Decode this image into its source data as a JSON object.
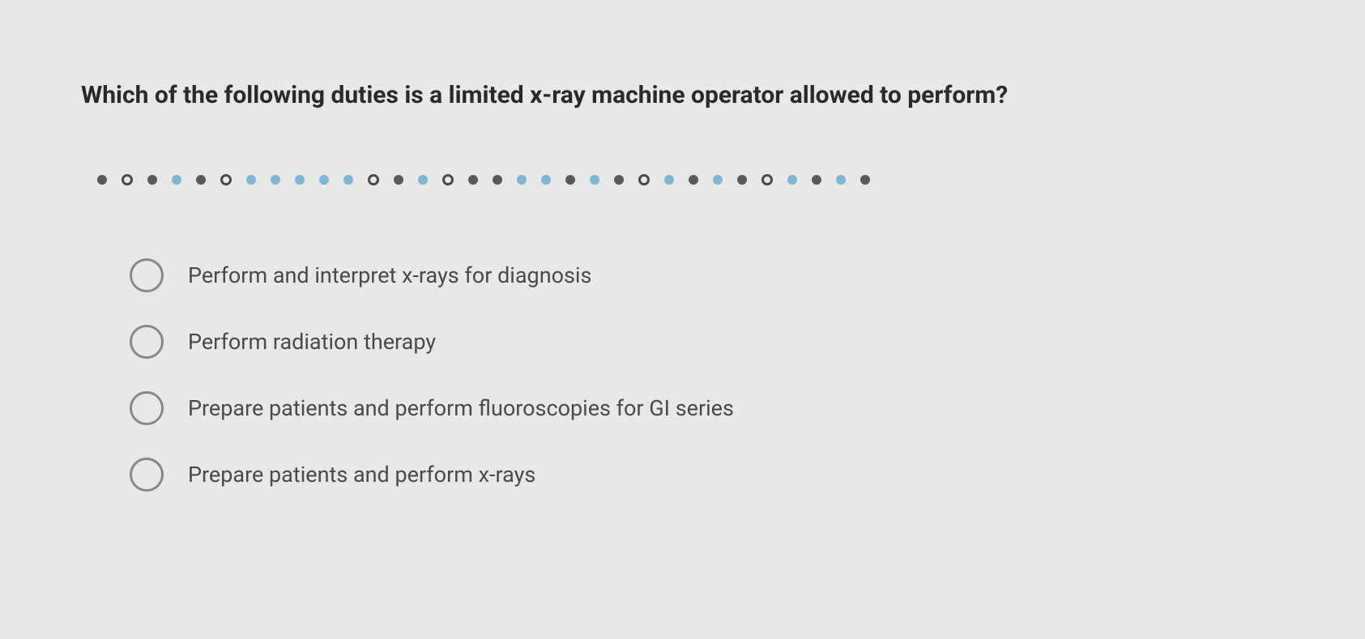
{
  "question": {
    "text": "Which of the following duties is a limited x-ray machine operator allowed to perform?"
  },
  "progress": {
    "dots": [
      {
        "type": "filled-dark"
      },
      {
        "type": "outline-dark"
      },
      {
        "type": "filled-dark"
      },
      {
        "type": "filled-blue"
      },
      {
        "type": "filled-dark"
      },
      {
        "type": "outline-dark"
      },
      {
        "type": "filled-blue"
      },
      {
        "type": "filled-blue"
      },
      {
        "type": "filled-blue"
      },
      {
        "type": "filled-blue"
      },
      {
        "type": "filled-blue"
      },
      {
        "type": "outline-dark"
      },
      {
        "type": "filled-dark"
      },
      {
        "type": "filled-blue"
      },
      {
        "type": "outline-dark"
      },
      {
        "type": "filled-dark"
      },
      {
        "type": "filled-dark"
      },
      {
        "type": "filled-blue"
      },
      {
        "type": "filled-blue"
      },
      {
        "type": "filled-dark"
      },
      {
        "type": "filled-blue"
      },
      {
        "type": "filled-dark"
      },
      {
        "type": "outline-dark"
      },
      {
        "type": "filled-blue"
      },
      {
        "type": "filled-dark"
      },
      {
        "type": "filled-blue"
      },
      {
        "type": "filled-dark"
      },
      {
        "type": "outline-dark"
      },
      {
        "type": "filled-blue"
      },
      {
        "type": "filled-dark"
      },
      {
        "type": "filled-blue"
      },
      {
        "type": "filled-dark"
      }
    ],
    "colors": {
      "filled_dark": "#5a5a5a",
      "outline_dark": "#4a4a4a",
      "filled_blue": "#7cb8d6"
    }
  },
  "options": [
    {
      "label": "Perform and interpret x-rays for diagnosis",
      "selected": false
    },
    {
      "label": "Perform radiation therapy",
      "selected": false
    },
    {
      "label": "Prepare patients and perform fluoroscopies for GI series",
      "selected": false
    },
    {
      "label": "Prepare patients and perform x-rays",
      "selected": false
    }
  ],
  "styling": {
    "background_color": "#e8e8e6",
    "question_color": "#2a2a2a",
    "question_fontsize": 30,
    "option_color": "#4a4a4a",
    "option_fontsize": 27,
    "radio_border_color": "#888888"
  }
}
